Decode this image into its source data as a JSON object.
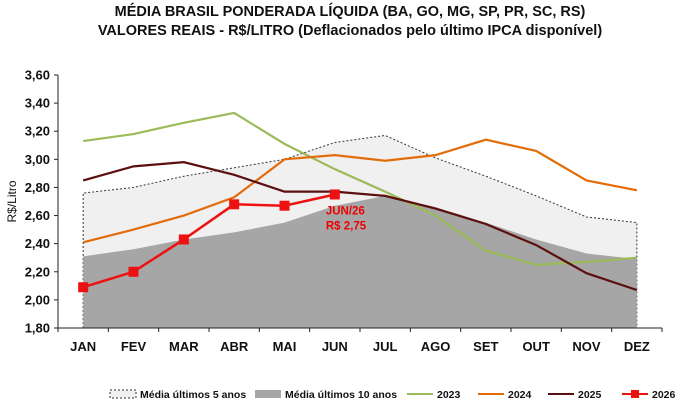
{
  "chart_data": {
    "type": "line",
    "title": "MÉDIA BRASIL PONDERADA LÍQUIDA (BA, GO, MG, SP, PR, SC, RS)",
    "subtitle": "VALORES REAIS - R$/LITRO (Deflacionados pelo último IPCA disponível)",
    "ylabel": "R$/Litro",
    "xlabel": "",
    "ylim": [
      1.8,
      3.6
    ],
    "y_ticks": [
      "1,80",
      "2,00",
      "2,20",
      "2,40",
      "2,60",
      "2,80",
      "3,00",
      "3,20",
      "3,40",
      "3,60"
    ],
    "grid": false,
    "legend_position": "bottom",
    "categories": [
      "JAN",
      "FEV",
      "MAR",
      "ABR",
      "MAI",
      "JUN",
      "JUL",
      "AGO",
      "SET",
      "OUT",
      "NOV",
      "DEZ"
    ],
    "series": [
      {
        "name": "Média últimos 5 anos",
        "style": "area-dotted",
        "color": "#f0f0f0",
        "values": [
          2.76,
          2.8,
          2.88,
          2.94,
          3.0,
          3.12,
          3.17,
          3.01,
          2.88,
          2.74,
          2.59,
          2.55
        ]
      },
      {
        "name": "Média últimos 10 anos",
        "style": "area",
        "color": "#a6a6a6",
        "values": [
          2.31,
          2.36,
          2.43,
          2.48,
          2.55,
          2.67,
          2.74,
          2.66,
          2.55,
          2.43,
          2.33,
          2.29
        ]
      },
      {
        "name": "2023",
        "style": "line",
        "color": "#9bbb59",
        "values": [
          3.13,
          3.18,
          3.26,
          3.33,
          3.11,
          2.93,
          2.77,
          2.6,
          2.35,
          2.25,
          2.27,
          2.3
        ]
      },
      {
        "name": "2024",
        "style": "line",
        "color": "#e36c09",
        "values": [
          2.41,
          2.5,
          2.6,
          2.73,
          3.0,
          3.03,
          2.99,
          3.03,
          3.14,
          3.06,
          2.85,
          2.78
        ]
      },
      {
        "name": "2025",
        "style": "line",
        "color": "#5c0f0f",
        "values": [
          2.85,
          2.95,
          2.98,
          2.89,
          2.77,
          2.77,
          2.74,
          2.65,
          2.54,
          2.39,
          2.19,
          2.07
        ]
      },
      {
        "name": "2026",
        "style": "line-markers",
        "color": "#ee1111",
        "values": [
          2.09,
          2.2,
          2.43,
          2.68,
          2.67,
          2.75,
          null,
          null,
          null,
          null,
          null,
          null
        ]
      }
    ],
    "annotations": [
      {
        "text_line1": "JUN/26",
        "text_line2": "R$ 2,75",
        "color": "#ee0000"
      }
    ]
  }
}
